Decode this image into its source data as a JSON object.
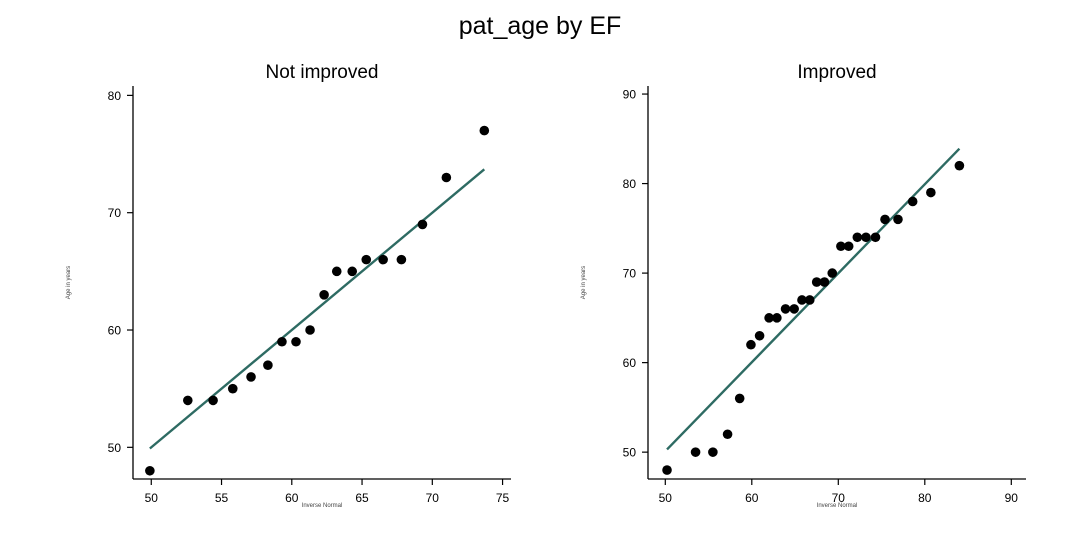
{
  "figure": {
    "title": "pat_age by EF"
  },
  "chart_data": [
    {
      "type": "scatter",
      "title": "Not improved",
      "xlabel": "Inverse Normal",
      "ylabel": "Age in years",
      "xlim": [
        48.7,
        75.6
      ],
      "ylim": [
        47.3,
        80.8
      ],
      "xticks": [
        50,
        55,
        60,
        65,
        70,
        75
      ],
      "yticks": [
        50,
        60,
        70,
        80
      ],
      "grid": false,
      "colors": {
        "points": "#000000",
        "line": "#2e6b63"
      },
      "series": [
        {
          "kind": "points",
          "x": [
            49.9,
            52.6,
            54.4,
            55.8,
            57.1,
            58.3,
            59.3,
            60.3,
            61.3,
            62.3,
            63.2,
            64.3,
            65.3,
            66.5,
            67.8,
            69.3,
            71.0,
            73.7
          ],
          "y": [
            48,
            54,
            54,
            55,
            56,
            57,
            59,
            59,
            60,
            63,
            65,
            65,
            66,
            66,
            66,
            69,
            73,
            77
          ]
        },
        {
          "kind": "fit-line",
          "x": [
            49.9,
            73.7
          ],
          "y": [
            49.9,
            73.7
          ]
        }
      ]
    },
    {
      "type": "scatter",
      "title": "Improved",
      "xlabel": "Inverse Normal",
      "ylabel": "Age in years",
      "xlim": [
        48.0,
        91.7
      ],
      "ylim": [
        47.0,
        90.9
      ],
      "xticks": [
        50,
        60,
        70,
        80,
        90
      ],
      "yticks": [
        50,
        60,
        70,
        80,
        90
      ],
      "grid": false,
      "colors": {
        "points": "#000000",
        "line": "#2e6b63"
      },
      "series": [
        {
          "kind": "points",
          "x": [
            50.2,
            53.5,
            55.5,
            57.2,
            58.6,
            59.9,
            60.9,
            62.0,
            62.9,
            63.9,
            64.9,
            65.8,
            66.7,
            67.5,
            68.4,
            69.3,
            70.3,
            71.2,
            72.2,
            73.2,
            74.3,
            75.4,
            76.9,
            78.6,
            80.7,
            84.0
          ],
          "y": [
            48,
            50,
            50,
            52,
            56,
            62,
            63,
            65,
            65,
            66,
            66,
            67,
            67,
            69,
            69,
            70,
            73,
            73,
            74,
            74,
            74,
            76,
            76,
            78,
            79,
            82
          ]
        },
        {
          "kind": "fit-line",
          "x": [
            50.2,
            84.0
          ],
          "y": [
            50.3,
            83.9
          ]
        }
      ]
    }
  ]
}
